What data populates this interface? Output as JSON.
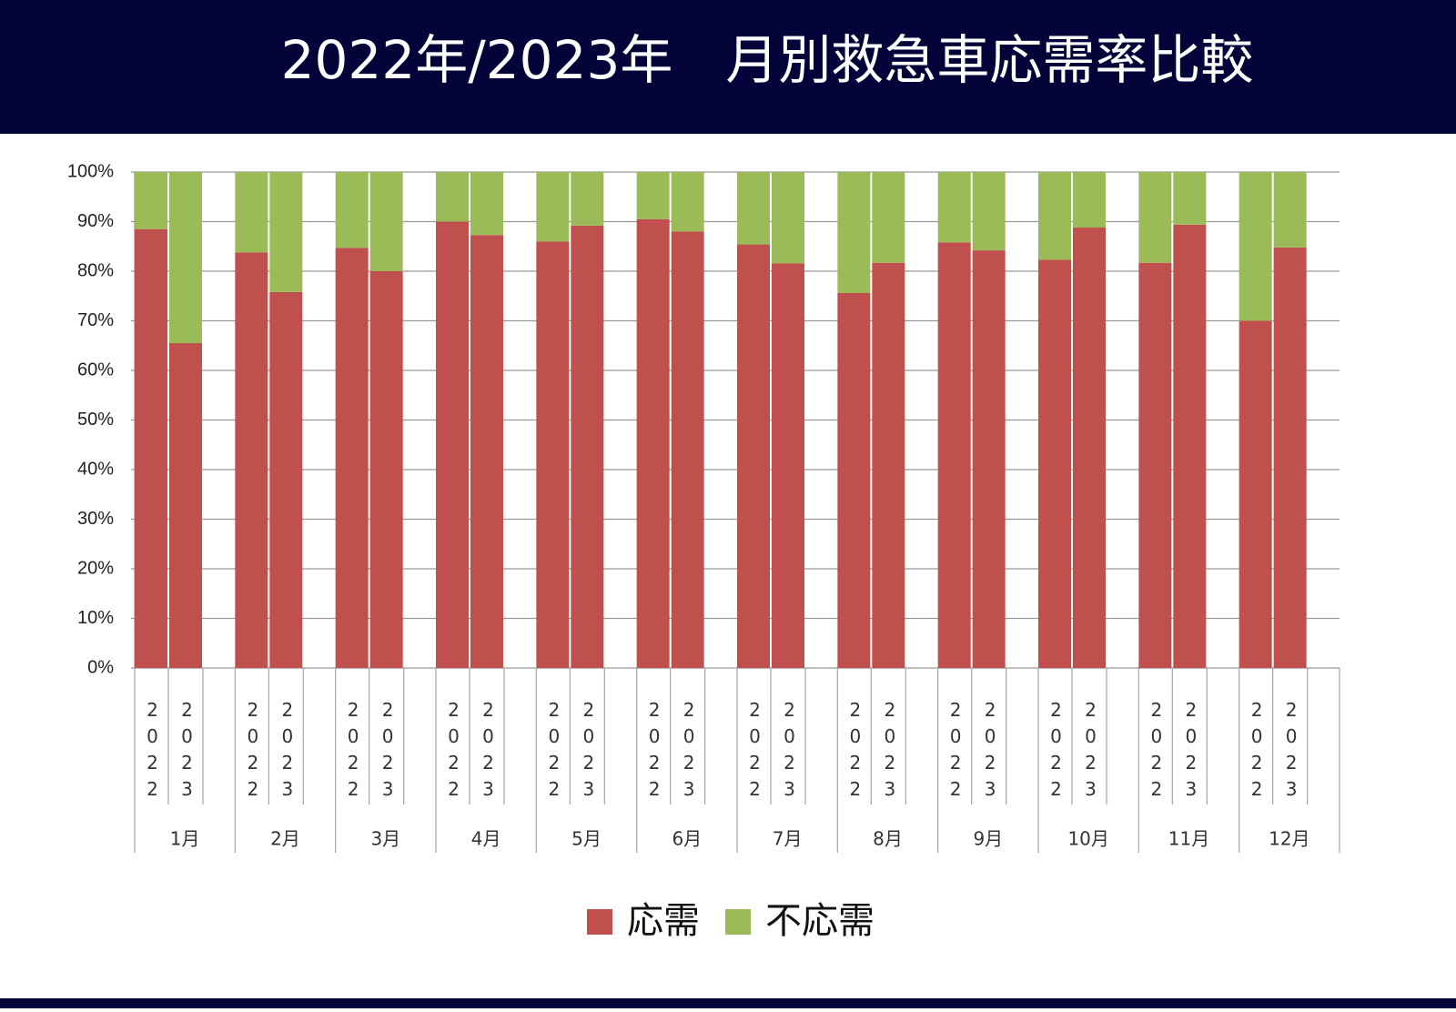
{
  "chart_data": {
    "type": "stacked_bar",
    "title": "2022年/2023年　月別救急車応需率比較",
    "groups": [
      "1月",
      "2月",
      "3月",
      "4月",
      "5月",
      "6月",
      "7月",
      "8月",
      "9月",
      "10月",
      "11月",
      "12月"
    ],
    "categories": [
      "2022",
      "2023",
      "2022",
      "2023",
      "2022",
      "2023",
      "2022",
      "2023",
      "2022",
      "2023",
      "2022",
      "2023",
      "2022",
      "2023",
      "2022",
      "2023",
      "2022",
      "2023",
      "2022",
      "2023",
      "2022",
      "2023",
      "2022",
      "2023"
    ],
    "series": [
      {
        "name": "応需",
        "color": "#c0504d",
        "values": [
          88.5,
          65.5,
          83.8,
          75.8,
          84.7,
          80.0,
          90.0,
          87.3,
          86.0,
          89.2,
          90.5,
          88.0,
          85.4,
          81.6,
          75.6,
          81.7,
          85.8,
          84.2,
          82.3,
          88.8,
          81.7,
          89.4,
          70.0,
          84.8
        ]
      },
      {
        "name": "不応需",
        "color": "#9bbb59",
        "values": [
          11.5,
          34.5,
          16.2,
          24.2,
          15.3,
          20.0,
          10.0,
          12.7,
          14.0,
          10.8,
          9.5,
          12.0,
          14.6,
          18.4,
          24.4,
          18.3,
          14.2,
          15.8,
          17.7,
          11.2,
          18.3,
          10.6,
          30.0,
          15.2
        ]
      }
    ],
    "ylim": [
      0,
      100
    ],
    "yticks": [
      {
        "value": 0,
        "label": "0%"
      },
      {
        "value": 10,
        "label": "10%"
      },
      {
        "value": 20,
        "label": "20%"
      },
      {
        "value": 30,
        "label": "30%"
      },
      {
        "value": 40,
        "label": "40%"
      },
      {
        "value": 50,
        "label": "50%"
      },
      {
        "value": 60,
        "label": "60%"
      },
      {
        "value": 70,
        "label": "70%"
      },
      {
        "value": 80,
        "label": "80%"
      },
      {
        "value": 90,
        "label": "90%"
      },
      {
        "value": 100,
        "label": "100%"
      }
    ],
    "grid": true
  }
}
